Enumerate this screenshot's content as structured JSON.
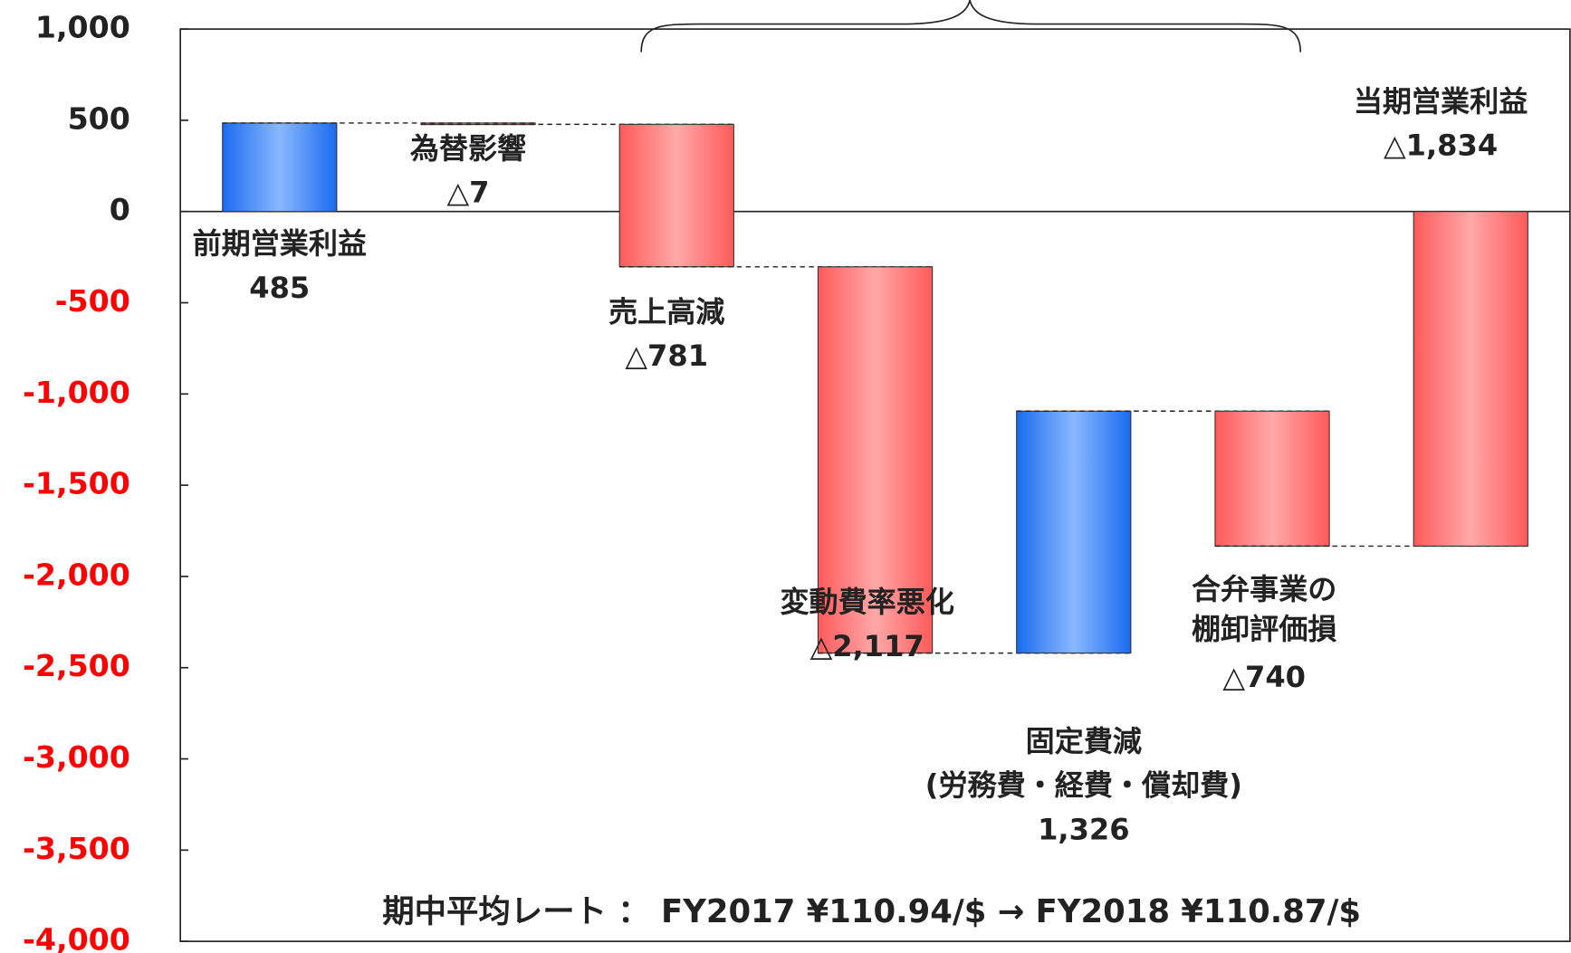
{
  "chart_data": {
    "type": "waterfall",
    "categories": [
      [
        "前期営業利益"
      ],
      [
        "為替影響"
      ],
      [
        "売上高減"
      ],
      [
        "変動費率悪化"
      ],
      [
        "固定費減",
        "(労務費・経費・償却費)"
      ],
      [
        "合弁事業の",
        "棚卸評価損"
      ],
      [
        "当期営業利益"
      ]
    ],
    "values": [
      485,
      -7,
      -781,
      -2117,
      1326,
      -740,
      -1834
    ],
    "value_labels": [
      "485",
      "△7",
      "△781",
      "△2,117",
      "1,326",
      "△740",
      "△1,834"
    ],
    "is_total": [
      true,
      false,
      false,
      false,
      false,
      false,
      true
    ],
    "increase_color": "#1a6bf0",
    "decrease_color": "#ff5a5a",
    "negative_tick_color": "#ff0000",
    "ylim": [
      -4000,
      1000
    ],
    "yticks": [
      {
        "value": 1000,
        "label": "1,000"
      },
      500,
      0,
      -500,
      {
        "value": -1000,
        "label": "-1,000"
      },
      {
        "value": -1500,
        "label": "-1,500"
      },
      {
        "value": -2000,
        "label": "-2,000"
      },
      {
        "value": -2500,
        "label": "-2,500"
      },
      {
        "value": -3000,
        "label": "-3,000"
      },
      {
        "value": -3500,
        "label": "-3,500"
      },
      {
        "value": -4000,
        "label": "-4,000"
      }
    ],
    "annotation": "期中平均レート ： FY2017 ¥110.94/$ → FY2018 ¥110.87/$"
  }
}
